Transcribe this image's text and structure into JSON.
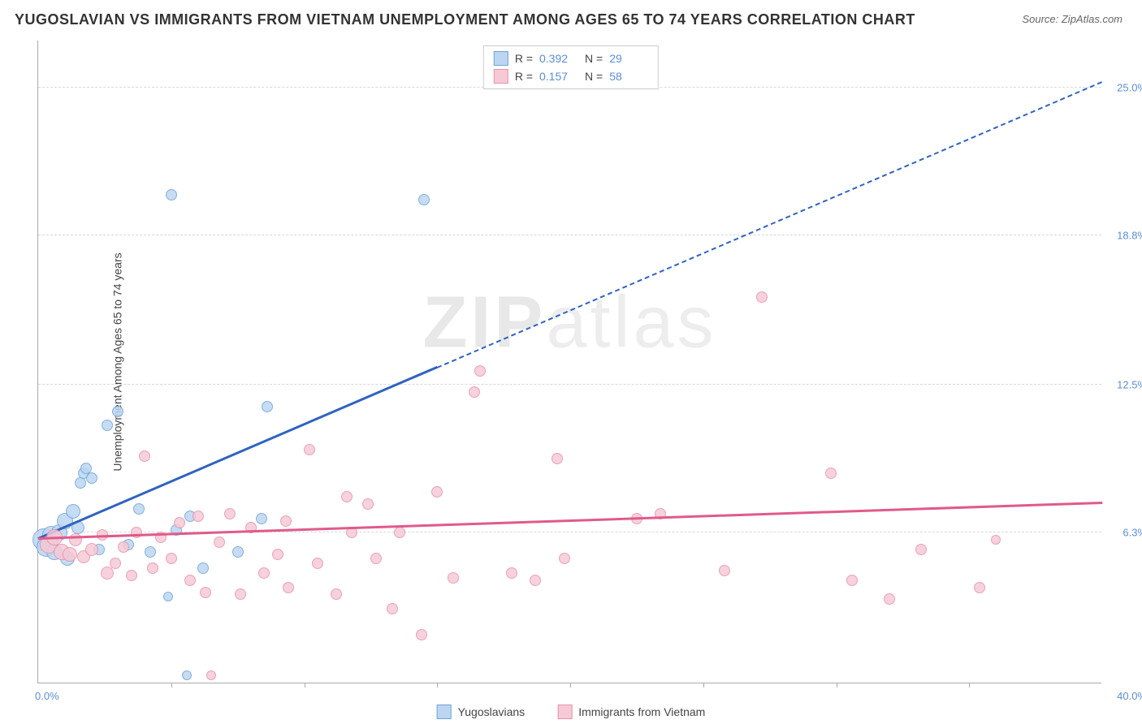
{
  "title": "YUGOSLAVIAN VS IMMIGRANTS FROM VIETNAM UNEMPLOYMENT AMONG AGES 65 TO 74 YEARS CORRELATION CHART",
  "source": "Source: ZipAtlas.com",
  "y_axis_label": "Unemployment Among Ages 65 to 74 years",
  "watermark_a": "ZIP",
  "watermark_b": "atlas",
  "chart": {
    "type": "scatter",
    "xlim": [
      0,
      40
    ],
    "ylim": [
      0,
      27
    ],
    "x_ticks": [
      5,
      10,
      15,
      20,
      25,
      30,
      35
    ],
    "x_label_min": "0.0%",
    "x_label_max": "40.0%",
    "y_grid": [
      {
        "v": 6.3,
        "label": "6.3%"
      },
      {
        "v": 12.5,
        "label": "12.5%"
      },
      {
        "v": 18.8,
        "label": "18.8%"
      },
      {
        "v": 25.0,
        "label": "25.0%"
      }
    ],
    "series": [
      {
        "key": "yugo",
        "label": "Yugoslavians",
        "fill": "#bcd6f2",
        "stroke": "#6fa3da",
        "line_color": "#2f63c0",
        "r_value": "0.392",
        "n_value": "29",
        "marker_size": 14,
        "trend": {
          "x0": 0,
          "y0": 6.0,
          "x1_solid": 15.0,
          "y1_solid": 13.2,
          "x1_dash": 40.0,
          "y1_dash": 25.2
        },
        "points": [
          {
            "x": 0.2,
            "y": 6.0,
            "s": 28
          },
          {
            "x": 0.3,
            "y": 5.7,
            "s": 24
          },
          {
            "x": 0.5,
            "y": 6.2,
            "s": 22
          },
          {
            "x": 0.6,
            "y": 5.5,
            "s": 20
          },
          {
            "x": 0.8,
            "y": 6.3,
            "s": 20
          },
          {
            "x": 1.0,
            "y": 6.8,
            "s": 20
          },
          {
            "x": 1.1,
            "y": 5.2,
            "s": 18
          },
          {
            "x": 1.3,
            "y": 7.2,
            "s": 18
          },
          {
            "x": 1.5,
            "y": 6.5,
            "s": 16
          },
          {
            "x": 1.6,
            "y": 8.4,
            "s": 14
          },
          {
            "x": 1.7,
            "y": 8.8,
            "s": 14
          },
          {
            "x": 1.8,
            "y": 9.0,
            "s": 14
          },
          {
            "x": 2.0,
            "y": 8.6,
            "s": 14
          },
          {
            "x": 2.3,
            "y": 5.6,
            "s": 14
          },
          {
            "x": 2.6,
            "y": 10.8,
            "s": 14
          },
          {
            "x": 3.0,
            "y": 11.4,
            "s": 14
          },
          {
            "x": 3.4,
            "y": 5.8,
            "s": 14
          },
          {
            "x": 3.8,
            "y": 7.3,
            "s": 14
          },
          {
            "x": 4.2,
            "y": 5.5,
            "s": 14
          },
          {
            "x": 4.9,
            "y": 3.6,
            "s": 12
          },
          {
            "x": 5.2,
            "y": 6.4,
            "s": 14
          },
          {
            "x": 5.6,
            "y": 0.3,
            "s": 12
          },
          {
            "x": 5.7,
            "y": 7.0,
            "s": 14
          },
          {
            "x": 6.2,
            "y": 4.8,
            "s": 14
          },
          {
            "x": 7.5,
            "y": 5.5,
            "s": 14
          },
          {
            "x": 8.4,
            "y": 6.9,
            "s": 14
          },
          {
            "x": 8.6,
            "y": 11.6,
            "s": 14
          },
          {
            "x": 5.0,
            "y": 20.5,
            "s": 14
          },
          {
            "x": 14.5,
            "y": 20.3,
            "s": 14
          }
        ]
      },
      {
        "key": "viet",
        "label": "Immigrants from Vietnam",
        "fill": "#f6c9d6",
        "stroke": "#e692ab",
        "line_color": "#e05a8a",
        "r_value": "0.157",
        "n_value": "58",
        "marker_size": 14,
        "trend": {
          "x0": 0,
          "y0": 6.0,
          "x1_solid": 40.0,
          "y1_solid": 7.5,
          "x1_dash": 40.0,
          "y1_dash": 7.5
        },
        "points": [
          {
            "x": 0.4,
            "y": 5.8,
            "s": 22
          },
          {
            "x": 0.6,
            "y": 6.1,
            "s": 20
          },
          {
            "x": 0.9,
            "y": 5.5,
            "s": 20
          },
          {
            "x": 1.2,
            "y": 5.4,
            "s": 18
          },
          {
            "x": 1.4,
            "y": 6.0,
            "s": 16
          },
          {
            "x": 1.7,
            "y": 5.3,
            "s": 16
          },
          {
            "x": 2.0,
            "y": 5.6,
            "s": 16
          },
          {
            "x": 2.4,
            "y": 6.2,
            "s": 14
          },
          {
            "x": 2.6,
            "y": 4.6,
            "s": 16
          },
          {
            "x": 2.9,
            "y": 5.0,
            "s": 14
          },
          {
            "x": 3.2,
            "y": 5.7,
            "s": 14
          },
          {
            "x": 3.5,
            "y": 4.5,
            "s": 14
          },
          {
            "x": 3.7,
            "y": 6.3,
            "s": 14
          },
          {
            "x": 4.0,
            "y": 9.5,
            "s": 14
          },
          {
            "x": 4.3,
            "y": 4.8,
            "s": 14
          },
          {
            "x": 4.6,
            "y": 6.1,
            "s": 14
          },
          {
            "x": 5.0,
            "y": 5.2,
            "s": 14
          },
          {
            "x": 5.3,
            "y": 6.7,
            "s": 14
          },
          {
            "x": 5.7,
            "y": 4.3,
            "s": 14
          },
          {
            "x": 6.0,
            "y": 7.0,
            "s": 14
          },
          {
            "x": 6.3,
            "y": 3.8,
            "s": 14
          },
          {
            "x": 6.5,
            "y": 0.3,
            "s": 12
          },
          {
            "x": 6.8,
            "y": 5.9,
            "s": 14
          },
          {
            "x": 7.2,
            "y": 7.1,
            "s": 14
          },
          {
            "x": 7.6,
            "y": 3.7,
            "s": 14
          },
          {
            "x": 8.0,
            "y": 6.5,
            "s": 14
          },
          {
            "x": 8.5,
            "y": 4.6,
            "s": 14
          },
          {
            "x": 9.0,
            "y": 5.4,
            "s": 14
          },
          {
            "x": 9.3,
            "y": 6.8,
            "s": 14
          },
          {
            "x": 9.4,
            "y": 4.0,
            "s": 14
          },
          {
            "x": 10.2,
            "y": 9.8,
            "s": 14
          },
          {
            "x": 10.5,
            "y": 5.0,
            "s": 14
          },
          {
            "x": 11.2,
            "y": 3.7,
            "s": 14
          },
          {
            "x": 11.6,
            "y": 7.8,
            "s": 14
          },
          {
            "x": 11.8,
            "y": 6.3,
            "s": 14
          },
          {
            "x": 12.4,
            "y": 7.5,
            "s": 14
          },
          {
            "x": 12.7,
            "y": 5.2,
            "s": 14
          },
          {
            "x": 13.3,
            "y": 3.1,
            "s": 14
          },
          {
            "x": 13.6,
            "y": 6.3,
            "s": 14
          },
          {
            "x": 14.4,
            "y": 2.0,
            "s": 14
          },
          {
            "x": 15.0,
            "y": 8.0,
            "s": 14
          },
          {
            "x": 15.6,
            "y": 4.4,
            "s": 14
          },
          {
            "x": 16.4,
            "y": 12.2,
            "s": 14
          },
          {
            "x": 16.6,
            "y": 13.1,
            "s": 14
          },
          {
            "x": 17.8,
            "y": 4.6,
            "s": 14
          },
          {
            "x": 18.7,
            "y": 4.3,
            "s": 14
          },
          {
            "x": 19.5,
            "y": 9.4,
            "s": 14
          },
          {
            "x": 19.8,
            "y": 5.2,
            "s": 14
          },
          {
            "x": 22.5,
            "y": 6.9,
            "s": 14
          },
          {
            "x": 23.4,
            "y": 7.1,
            "s": 14
          },
          {
            "x": 25.8,
            "y": 4.7,
            "s": 14
          },
          {
            "x": 27.2,
            "y": 16.2,
            "s": 14
          },
          {
            "x": 29.8,
            "y": 8.8,
            "s": 14
          },
          {
            "x": 30.6,
            "y": 4.3,
            "s": 14
          },
          {
            "x": 32.0,
            "y": 3.5,
            "s": 14
          },
          {
            "x": 33.2,
            "y": 5.6,
            "s": 14
          },
          {
            "x": 35.4,
            "y": 4.0,
            "s": 14
          },
          {
            "x": 36.0,
            "y": 6.0,
            "s": 12
          }
        ]
      }
    ]
  }
}
